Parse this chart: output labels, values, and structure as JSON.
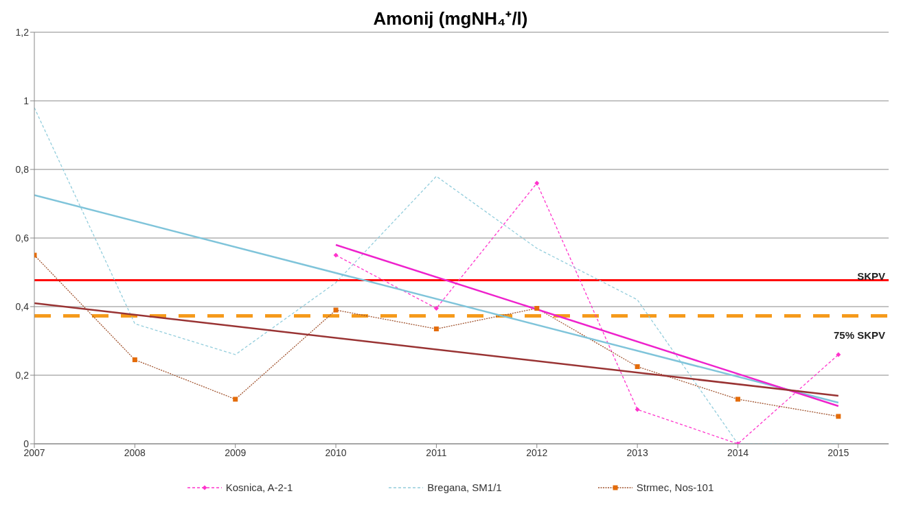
{
  "chart_data": {
    "type": "line",
    "title": "Amonij (mgNH₄⁺/l)",
    "xlim": [
      2007,
      2015.5
    ],
    "xticks": [
      2007,
      2008,
      2009,
      2010,
      2011,
      2012,
      2013,
      2014,
      2015
    ],
    "ylim": [
      0,
      1.2
    ],
    "yticks": [
      0,
      {
        "value": 0.2,
        "label": "0,2"
      },
      {
        "value": 0.4,
        "label": "0,4"
      },
      {
        "value": 0.6,
        "label": "0,6"
      },
      {
        "value": 0.8,
        "label": "0,8"
      },
      1,
      {
        "value": 1.2,
        "label": "1,2"
      }
    ],
    "grid": "y",
    "legend": "bottom",
    "series": [
      {
        "name": "Kosnica,  A-2-1",
        "color": "#ff33cc",
        "line_style": "dashed",
        "marker": "diamond",
        "x": [
          2010,
          2011,
          2012,
          2013,
          2014,
          2015
        ],
        "values": [
          0.55,
          0.395,
          0.76,
          0.1,
          0,
          0.26
        ]
      },
      {
        "name": "Bregana,  SM1/1",
        "color": "#92cddc",
        "line_style": "dashed",
        "marker": "none",
        "x": [
          2007,
          2008,
          2009,
          2010,
          2011,
          2012,
          2013,
          2014,
          2015
        ],
        "values": [
          0.98,
          0.35,
          0.26,
          0.47,
          0.78,
          0.57,
          0.42,
          0,
          0
        ]
      },
      {
        "name": "Strmec,  Nos-101",
        "color": "#a0522d",
        "line_style": "dotted",
        "marker": "square",
        "x": [
          2007,
          2008,
          2009,
          2010,
          2011,
          2012,
          2013,
          2014,
          2015
        ],
        "values": [
          0.55,
          0.245,
          0.13,
          0.39,
          0.335,
          0.395,
          0.225,
          0.13,
          0.08
        ]
      },
      {
        "type": "line",
        "color": "#7fc4da",
        "line_style": "solid",
        "marker": "none",
        "x": [
          2007,
          2015
        ],
        "values": [
          0.725,
          0.12
        ]
      },
      {
        "type": "line",
        "color": "#ee22cc",
        "line_style": "solid",
        "marker": "none",
        "x": [
          2010,
          2015
        ],
        "values": [
          0.58,
          0.11
        ]
      },
      {
        "type": "line",
        "color": "#993333",
        "line_style": "solid",
        "marker": "none",
        "x": [
          2007,
          2015
        ],
        "values": [
          0.41,
          0.14
        ]
      }
    ],
    "ref_lines": [
      {
        "axis": "y",
        "value": 0.477,
        "label": "SKPV",
        "color": "#ff0000",
        "line_style": "solid"
      },
      {
        "axis": "y",
        "value": 0.373,
        "label": "75% SKPV",
        "color": "#f59a1b",
        "line_style": "dashed"
      }
    ]
  }
}
